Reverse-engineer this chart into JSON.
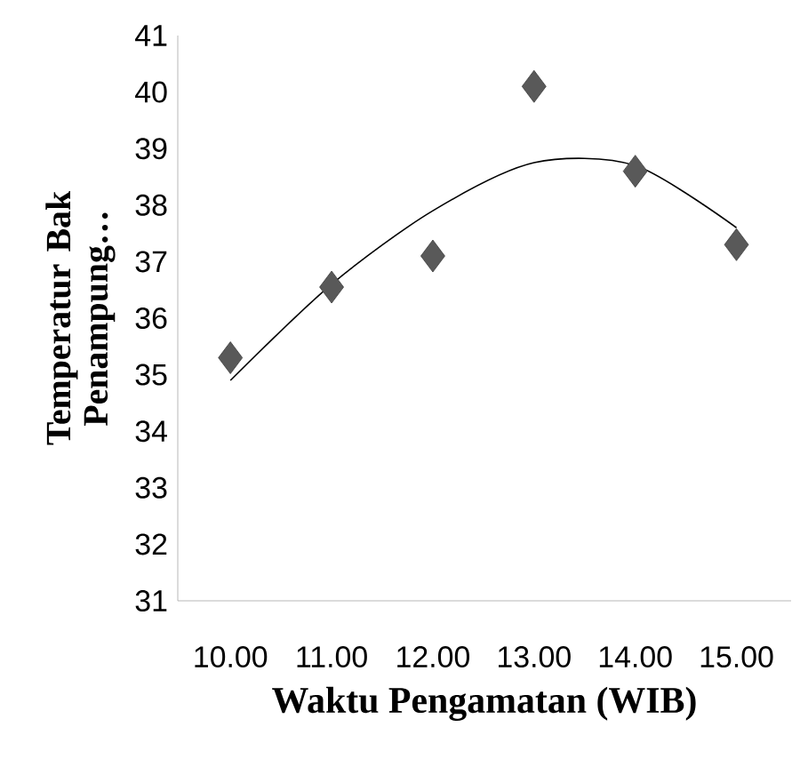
{
  "chart_data": {
    "type": "scatter",
    "xlabel": "Waktu Pengamatan (WIB)",
    "ylabel": "Temperatur Bak Penampung…",
    "categories": [
      "10.00",
      "11.00",
      "12.00",
      "13.00",
      "14.00",
      "15.00"
    ],
    "ylim": [
      31,
      41
    ],
    "yticks": [
      31,
      32,
      33,
      34,
      35,
      36,
      37,
      38,
      39,
      40,
      41
    ],
    "grid": false,
    "series": [
      {
        "color": "#595959",
        "marker": "diamond",
        "values": [
          35.3,
          36.55,
          37.1,
          40.1,
          38.6,
          37.3
        ]
      },
      {
        "type": "line",
        "color": "#000000",
        "marker": "none",
        "values": [
          34.9,
          36.6,
          37.9,
          38.75,
          38.7,
          37.6
        ]
      }
    ]
  }
}
